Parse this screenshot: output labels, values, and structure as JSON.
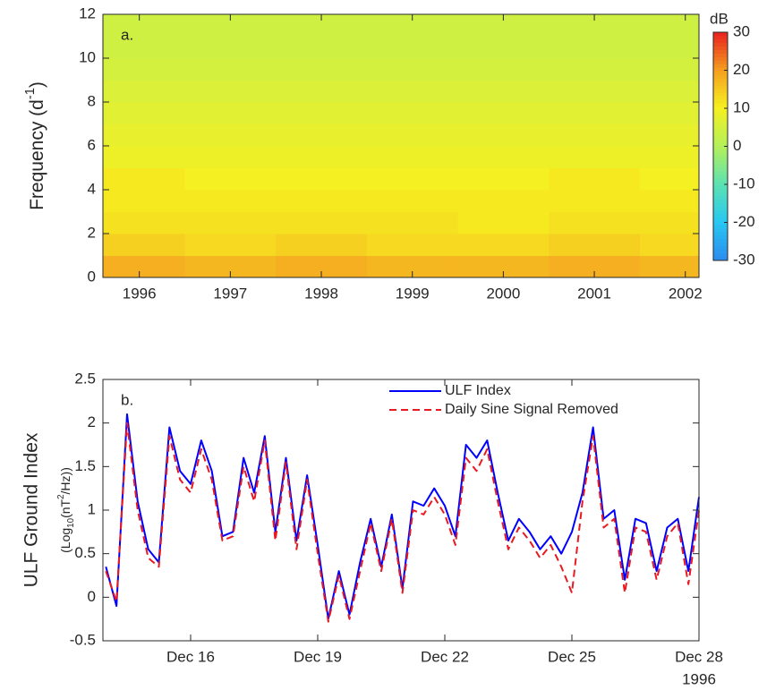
{
  "chart_data": [
    {
      "type": "heatmap",
      "panel_label": "a.",
      "ylabel_parts": [
        "Frequency (d",
        "-1",
        ")"
      ],
      "ylabel_styles": [
        "normal",
        "sup",
        "normal"
      ],
      "x_edges": [
        1995.6,
        1996.5,
        1997.5,
        1998.5,
        1999.5,
        2000.5,
        2001.5,
        2002.15
      ],
      "y_edges": [
        0,
        1,
        2,
        3,
        4,
        5,
        6,
        7,
        8,
        9,
        10,
        11,
        12
      ],
      "z": [
        [
          18,
          17,
          18,
          17,
          17,
          18,
          17
        ],
        [
          14,
          13,
          14,
          13,
          13,
          14,
          13
        ],
        [
          12,
          12,
          12,
          12,
          11,
          12,
          12
        ],
        [
          11,
          11,
          11,
          11,
          11,
          11,
          11
        ],
        [
          11,
          10,
          10,
          10,
          10,
          11,
          10
        ],
        [
          9,
          9,
          9,
          9,
          9,
          9,
          9
        ],
        [
          8,
          8,
          8,
          8,
          8,
          8,
          8
        ],
        [
          7,
          7,
          7,
          7,
          7,
          7,
          7
        ],
        [
          6,
          6,
          6,
          6,
          6,
          6,
          6
        ],
        [
          5,
          5,
          5,
          5,
          5,
          5,
          5
        ],
        [
          4,
          4,
          4,
          4,
          4,
          4,
          4
        ],
        [
          4,
          4,
          4,
          4,
          4,
          4,
          4
        ]
      ],
      "xlim": [
        1995.6,
        2002.15
      ],
      "xticks": [
        1996,
        1997,
        1998,
        1999,
        2000,
        2001,
        2002
      ],
      "ylim": [
        0,
        12
      ],
      "yticks": [
        0,
        2,
        4,
        6,
        8,
        10,
        12
      ],
      "colorbar": {
        "label": "dB",
        "lim": [
          -30,
          30
        ],
        "ticks": [
          -30,
          -20,
          -10,
          0,
          10,
          20,
          30
        ]
      }
    },
    {
      "type": "line",
      "panel_label": "b.",
      "ylabel": "ULF Ground Index",
      "ylabel2_parts": [
        "(Log",
        "10",
        "(nT",
        "2",
        "/Hz))"
      ],
      "ylabel2_styles": [
        "normal",
        "sub",
        "normal",
        "sup",
        "normal"
      ],
      "x_year_label": "1996",
      "x": [
        14,
        14.25,
        14.5,
        14.75,
        15,
        15.25,
        15.5,
        15.75,
        16,
        16.25,
        16.5,
        16.75,
        17,
        17.25,
        17.5,
        17.75,
        18,
        18.25,
        18.5,
        18.75,
        19,
        19.25,
        19.5,
        19.75,
        20,
        20.25,
        20.5,
        20.75,
        21,
        21.25,
        21.5,
        21.75,
        22,
        22.25,
        22.5,
        22.75,
        23,
        23.25,
        23.5,
        23.75,
        24,
        24.25,
        24.5,
        24.75,
        25,
        25.25,
        25.5,
        25.75,
        26,
        26.25,
        26.5,
        26.75,
        27,
        27.25,
        27.5,
        27.75,
        28
      ],
      "series": [
        {
          "name": "ULF Index",
          "color": "#0000ff",
          "dash": false,
          "values": [
            0.35,
            -0.1,
            2.1,
            1.1,
            0.55,
            0.4,
            1.95,
            1.45,
            1.3,
            1.8,
            1.45,
            0.7,
            0.75,
            1.6,
            1.2,
            1.85,
            0.75,
            1.6,
            0.65,
            1.4,
            0.6,
            -0.25,
            0.3,
            -0.2,
            0.4,
            0.9,
            0.35,
            0.95,
            0.1,
            1.1,
            1.05,
            1.25,
            1.05,
            0.7,
            1.75,
            1.6,
            1.8,
            1.2,
            0.65,
            0.9,
            0.75,
            0.55,
            0.7,
            0.5,
            0.75,
            1.2,
            1.95,
            0.9,
            1.0,
            0.2,
            0.9,
            0.85,
            0.3,
            0.8,
            0.9,
            0.3,
            1.15
          ]
        },
        {
          "name": "Daily Sine Signal Removed",
          "color": "#e8191f",
          "dash": true,
          "values": [
            0.3,
            -0.05,
            2.0,
            1.0,
            0.45,
            0.35,
            1.85,
            1.35,
            1.2,
            1.7,
            1.35,
            0.65,
            0.7,
            1.5,
            1.1,
            1.8,
            0.65,
            1.55,
            0.55,
            1.35,
            0.5,
            -0.28,
            0.25,
            -0.25,
            0.3,
            0.85,
            0.3,
            0.9,
            0.05,
            1.0,
            0.95,
            1.15,
            0.95,
            0.6,
            1.6,
            1.45,
            1.7,
            1.1,
            0.55,
            0.8,
            0.65,
            0.45,
            0.6,
            0.35,
            0.05,
            1.1,
            1.85,
            0.8,
            0.9,
            0.05,
            0.8,
            0.75,
            0.2,
            0.7,
            0.85,
            0.15,
            1.0
          ]
        }
      ],
      "xlim": [
        13.93,
        28
      ],
      "xticks": [
        {
          "value": 16,
          "label": "Dec 16"
        },
        {
          "value": 19,
          "label": "Dec 19"
        },
        {
          "value": 22,
          "label": "Dec 22"
        },
        {
          "value": 25,
          "label": "Dec 25"
        },
        {
          "value": 28,
          "label": "Dec 28"
        }
      ],
      "ylim": [
        -0.5,
        2.5
      ],
      "yticks": [
        -0.5,
        0,
        0.5,
        1,
        1.5,
        2,
        2.5
      ],
      "legend": "top"
    }
  ]
}
